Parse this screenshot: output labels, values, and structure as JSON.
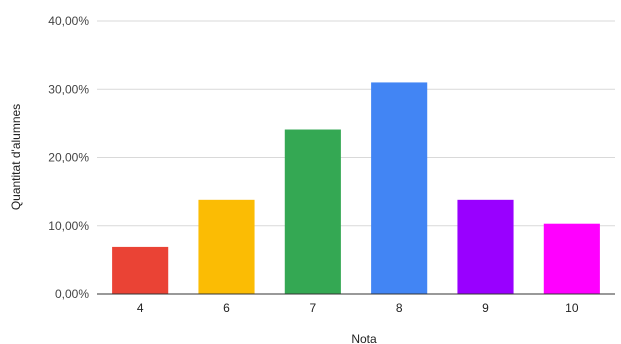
{
  "chart_data": {
    "type": "bar",
    "title": "",
    "xlabel": "Nota",
    "ylabel": "Quantitat d'alumnes",
    "categories": [
      "4",
      "6",
      "7",
      "8",
      "9",
      "10"
    ],
    "values": [
      6.9,
      13.8,
      24.1,
      31.0,
      13.8,
      10.3
    ],
    "colors": [
      "#ea4335",
      "#fbbc04",
      "#34a853",
      "#4285f4",
      "#9900ff",
      "#ff00ff"
    ],
    "ylim": [
      0,
      40
    ],
    "yticks": [
      0,
      10,
      20,
      30,
      40
    ],
    "ytick_labels": [
      "0,00%",
      "10,00%",
      "20,00%",
      "30,00%",
      "40,00%"
    ],
    "grid": true,
    "legend": "none"
  }
}
